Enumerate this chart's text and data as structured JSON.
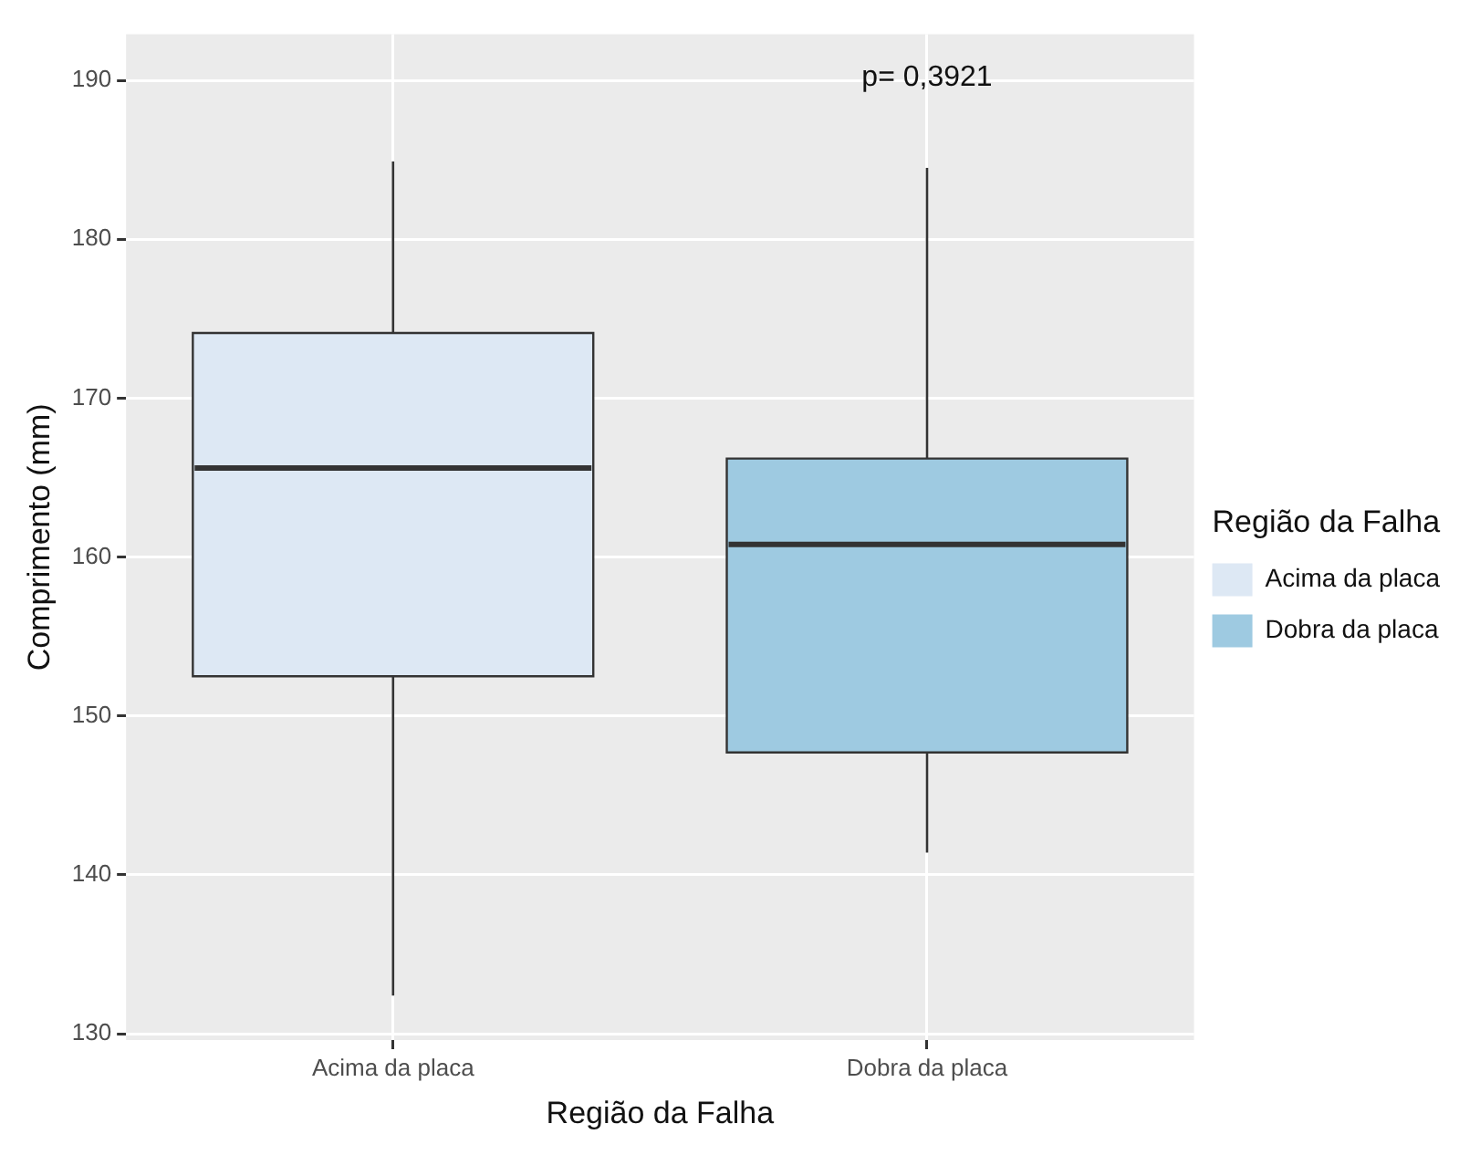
{
  "chart_data": {
    "type": "box",
    "xlabel": "Região da Falha",
    "ylabel": "Comprimento (mm)",
    "legend_title": "Região da Falha",
    "categories": [
      "Acima da placa",
      "Dobra da placa"
    ],
    "series": [
      {
        "name": "Acima da placa",
        "color": "#dde8f4",
        "boxes": [
          {
            "low": 132.4,
            "q1": 152.5,
            "median": 165.6,
            "q3": 174.1,
            "high": 184.9
          },
          null
        ]
      },
      {
        "name": "Dobra da placa",
        "color": "#9ecae1",
        "boxes": [
          null,
          {
            "low": 141.4,
            "q1": 147.7,
            "median": 160.8,
            "q3": 166.2,
            "high": 184.5
          }
        ]
      }
    ],
    "ylim": [
      129.6,
      192.9
    ],
    "yticks": [
      130,
      140,
      150,
      160,
      170,
      180,
      190
    ],
    "grid": true,
    "legend": "right",
    "annotations": [
      "p= 0,3921"
    ]
  }
}
